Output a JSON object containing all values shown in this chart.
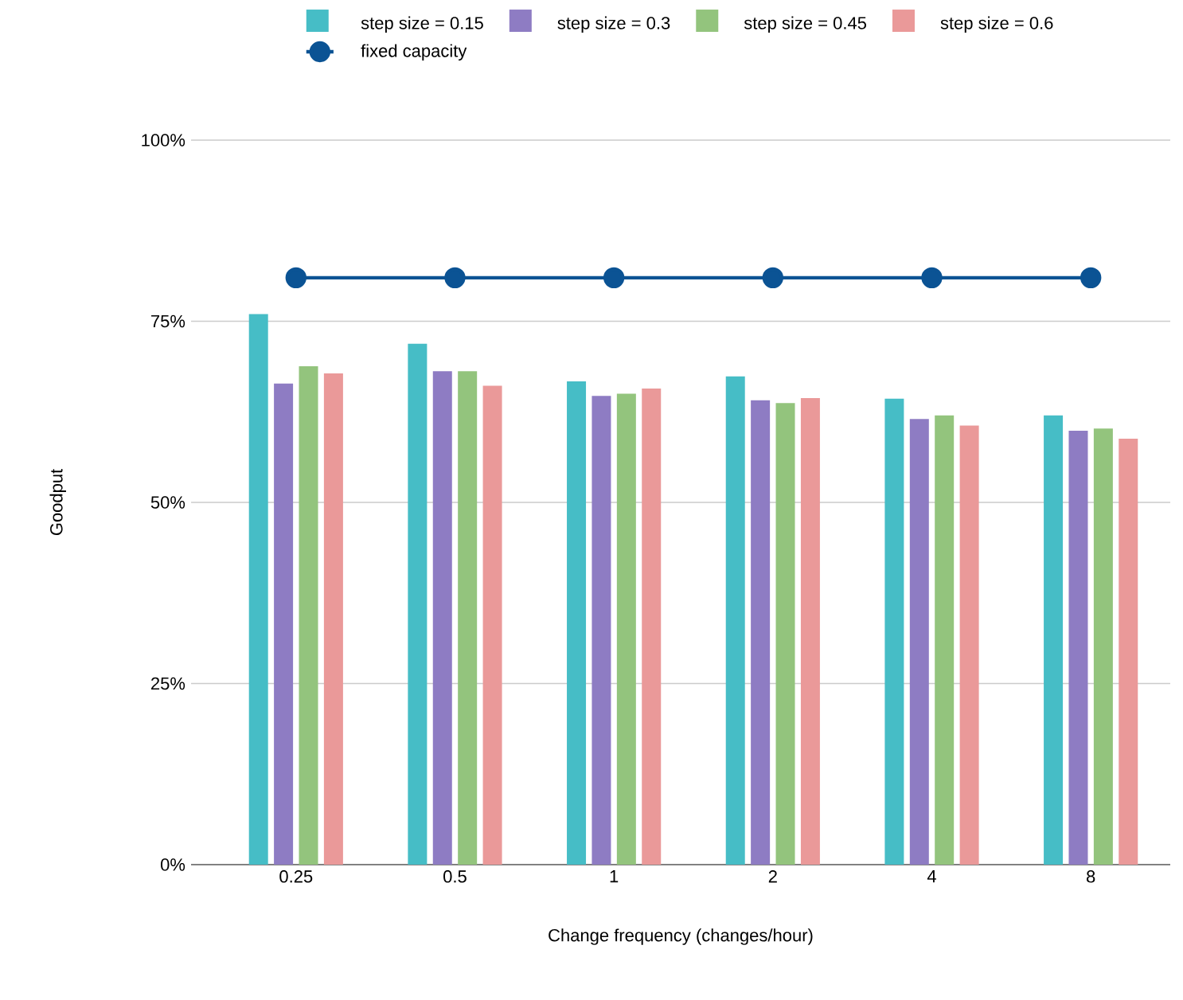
{
  "chart_data": {
    "type": "bar",
    "xlabel": "Change frequency (changes/hour)",
    "ylabel": "Goodput",
    "categories": [
      "0.25",
      "0.5",
      "1",
      "2",
      "4",
      "8"
    ],
    "series": [
      {
        "name": "step size = 0.15",
        "color": "#46bdc6",
        "values": [
          76.0,
          71.9,
          66.7,
          67.4,
          64.3,
          62.0
        ]
      },
      {
        "name": "step size = 0.3",
        "color": "#8e7cc3",
        "values": [
          66.4,
          68.1,
          64.7,
          64.1,
          61.5,
          59.9
        ]
      },
      {
        "name": "step size = 0.45",
        "color": "#93c47d",
        "values": [
          68.8,
          68.1,
          65.0,
          63.7,
          62.0,
          60.2
        ]
      },
      {
        "name": "step size = 0.6",
        "color": "#ea9999",
        "values": [
          67.8,
          66.1,
          65.7,
          64.4,
          60.6,
          58.8
        ]
      },
      {
        "name": "fixed capacity",
        "type": "line",
        "color": "#0b5394",
        "marker": "circle",
        "values": [
          81,
          81,
          81,
          81,
          81,
          81
        ]
      }
    ],
    "ylim": [
      0,
      100
    ],
    "yticks": [
      {
        "value": 0,
        "label": "0%"
      },
      {
        "value": 25,
        "label": "25%"
      },
      {
        "value": 50,
        "label": "50%"
      },
      {
        "value": 75,
        "label": "75%"
      },
      {
        "value": 100,
        "label": "100%"
      }
    ],
    "grid": "y",
    "legend": "top"
  }
}
